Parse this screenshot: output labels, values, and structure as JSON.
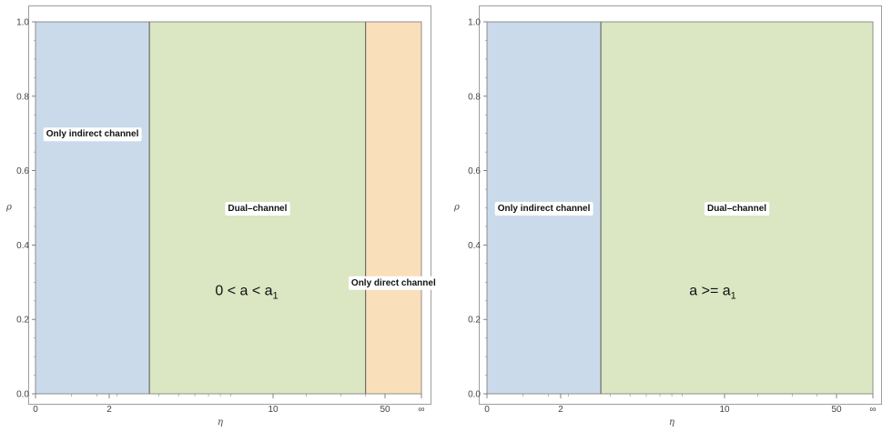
{
  "chart_data": [
    {
      "type": "region",
      "condition": {
        "text": "0 < a < a",
        "subscript": "1"
      },
      "xlabel": "η",
      "ylabel": "ρ",
      "x_ticks": [
        "0",
        "2",
        "10",
        "50",
        "∞"
      ],
      "y_ticks": [
        "0.0",
        "0.2",
        "0.4",
        "0.6",
        "0.8",
        "1.0"
      ],
      "ylim": [
        0,
        1
      ],
      "regions": [
        {
          "label": "Only indirect channel",
          "x_range": [
            0,
            2.6
          ],
          "color": "#cbdaea",
          "label_y": 0.7
        },
        {
          "label": "Dual–channel",
          "x_range": [
            2.6,
            40
          ],
          "color": "#dbe6c2",
          "label_y": 0.5
        },
        {
          "label": "Only direct channel",
          "x_range": [
            40,
            "∞"
          ],
          "color": "#fadfbb",
          "label_y": 0.3
        }
      ]
    },
    {
      "type": "region",
      "condition": {
        "text": "a >= a",
        "subscript": "1"
      },
      "xlabel": "η",
      "ylabel": "ρ",
      "x_ticks": [
        "0",
        "2",
        "10",
        "50",
        "∞"
      ],
      "y_ticks": [
        "0.0",
        "0.2",
        "0.4",
        "0.6",
        "0.8",
        "1.0"
      ],
      "ylim": [
        0,
        1
      ],
      "regions": [
        {
          "label": "Only indirect channel",
          "x_range": [
            0,
            2.6
          ],
          "color": "#cbdaea",
          "label_y": 0.5
        },
        {
          "label": "Dual–channel",
          "x_range": [
            2.6,
            "∞"
          ],
          "color": "#dbe6c2",
          "label_y": 0.5
        }
      ]
    }
  ]
}
